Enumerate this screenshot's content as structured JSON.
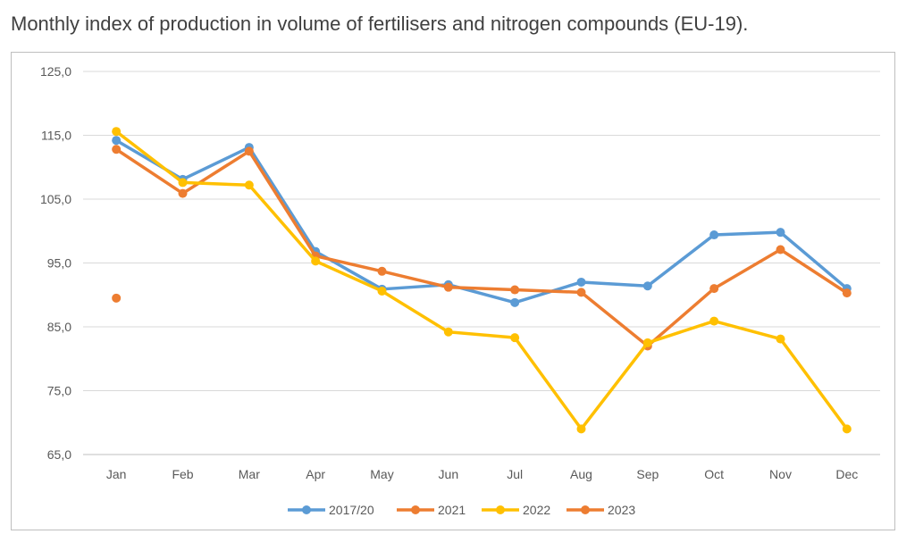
{
  "chart_data": {
    "type": "line",
    "title": "Monthly index of production in volume of fertilisers and nitrogen compounds (EU-19).",
    "xlabel": "",
    "ylabel": "",
    "categories": [
      "Jan",
      "Feb",
      "Mar",
      "Apr",
      "May",
      "Jun",
      "Jul",
      "Aug",
      "Sep",
      "Oct",
      "Nov",
      "Dec"
    ],
    "ylim": [
      65,
      125
    ],
    "yticks": [
      125,
      115,
      105,
      95,
      85,
      75,
      65
    ],
    "ytick_labels": [
      "125,0",
      "115,0",
      "105,0",
      "95,0",
      "85,0",
      "75,0",
      "65,0"
    ],
    "grid": true,
    "legend_position": "bottom",
    "series": [
      {
        "name": "2017/20",
        "color": "#5b9bd5",
        "values": [
          114.2,
          108.1,
          113.1,
          96.8,
          90.9,
          91.6,
          88.8,
          92.0,
          91.4,
          99.4,
          99.8,
          91.0
        ]
      },
      {
        "name": "2021",
        "color": "#ed7d31",
        "values": [
          112.8,
          105.9,
          112.5,
          96.1,
          93.7,
          91.2,
          90.8,
          90.4,
          82.0,
          91.0,
          97.1,
          90.3
        ]
      },
      {
        "name": "2022",
        "color": "#ffc000",
        "values": [
          115.6,
          107.6,
          107.2,
          95.3,
          90.6,
          84.2,
          83.3,
          69.0,
          82.5,
          85.9,
          83.1,
          69.0
        ]
      },
      {
        "name": "2023",
        "color": "#ed7d31",
        "values": [
          89.5,
          null,
          null,
          null,
          null,
          null,
          null,
          null,
          null,
          null,
          null,
          null
        ]
      }
    ]
  }
}
